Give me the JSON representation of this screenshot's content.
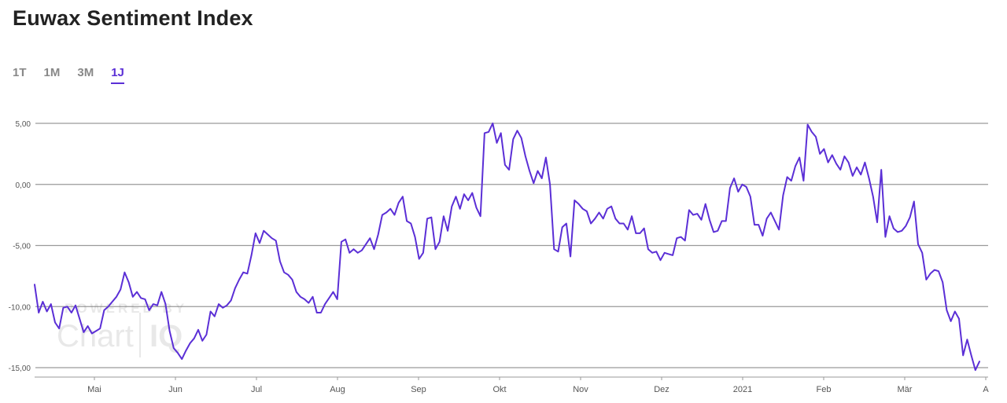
{
  "title": "Euwax Sentiment Index",
  "range_tabs": [
    {
      "label": "1T",
      "active": false
    },
    {
      "label": "1M",
      "active": false
    },
    {
      "label": "3M",
      "active": false
    },
    {
      "label": "1J",
      "active": true
    }
  ],
  "watermark": {
    "line1": "POWERED BY",
    "line2": "Chart",
    "line3": "IQ"
  },
  "colors": {
    "line": "#5b2fd6",
    "grid": "#9a9a9a",
    "accent": "#5b2fd6"
  },
  "chart_data": {
    "type": "line",
    "ylim": [
      -15,
      5
    ],
    "yticks": [
      5,
      0,
      -5,
      -10,
      -15
    ],
    "ytick_labels": [
      "5,00",
      "0,00",
      "-5,00",
      "-10,00",
      "-15,00"
    ],
    "xtick_labels": [
      "Mai",
      "Jun",
      "Jul",
      "Aug",
      "Sep",
      "Okt",
      "Nov",
      "Dez",
      "2021",
      "Feb",
      "Mär",
      "A"
    ],
    "grid": true,
    "series": [
      {
        "values": [
          -8.2,
          -10.5,
          -9.6,
          -10.4,
          -9.8,
          -11.3,
          -11.8,
          -10.1,
          -10.0,
          -10.5,
          -9.9,
          -11.0,
          -12.1,
          -11.6,
          -12.2,
          -12.0,
          -11.8,
          -10.3,
          -10.0,
          -9.6,
          -9.2,
          -8.6,
          -7.2,
          -8.0,
          -9.2,
          -8.8,
          -9.3,
          -9.4,
          -10.3,
          -9.8,
          -9.9,
          -8.8,
          -9.8,
          -12.0,
          -13.4,
          -13.8,
          -14.3,
          -13.6,
          -13.0,
          -12.6,
          -11.9,
          -12.8,
          -12.3,
          -10.4,
          -10.8,
          -9.8,
          -10.1,
          -9.9,
          -9.5,
          -8.5,
          -7.8,
          -7.2,
          -7.3,
          -5.8,
          -4.0,
          -4.8,
          -3.8,
          -4.1,
          -4.4,
          -4.6,
          -6.3,
          -7.2,
          -7.4,
          -7.8,
          -8.8,
          -9.2,
          -9.4,
          -9.7,
          -9.2,
          -10.5,
          -10.5,
          -9.8,
          -9.3,
          -8.8,
          -9.4,
          -4.7,
          -4.5,
          -5.6,
          -5.3,
          -5.6,
          -5.4,
          -4.9,
          -4.4,
          -5.3,
          -4.1,
          -2.5,
          -2.3,
          -2.0,
          -2.5,
          -1.5,
          -1.0,
          -3.0,
          -3.2,
          -4.3,
          -6.1,
          -5.6,
          -2.8,
          -2.7,
          -5.3,
          -4.7,
          -2.6,
          -3.8,
          -1.8,
          -1.0,
          -2.0,
          -0.8,
          -1.3,
          -0.7,
          -1.9,
          -2.6,
          4.2,
          4.3,
          5.0,
          3.4,
          4.2,
          1.6,
          1.2,
          3.7,
          4.4,
          3.8,
          2.3,
          1.1,
          0.1,
          1.1,
          0.5,
          2.2,
          0.0,
          -5.3,
          -5.5,
          -3.5,
          -3.2,
          -5.9,
          -1.3,
          -1.6,
          -2.0,
          -2.2,
          -3.2,
          -2.8,
          -2.3,
          -2.8,
          -2.0,
          -1.8,
          -2.8,
          -3.2,
          -3.2,
          -3.7,
          -2.6,
          -4.0,
          -4.0,
          -3.6,
          -5.3,
          -5.6,
          -5.5,
          -6.2,
          -5.6,
          -5.7,
          -5.8,
          -4.4,
          -4.3,
          -4.6,
          -2.1,
          -2.5,
          -2.4,
          -2.9,
          -1.6,
          -2.9,
          -3.9,
          -3.8,
          -3.0,
          -3.0,
          -0.3,
          0.5,
          -0.6,
          0.0,
          -0.2,
          -1.0,
          -3.3,
          -3.3,
          -4.2,
          -2.8,
          -2.3,
          -3.0,
          -3.7,
          -0.9,
          0.6,
          0.3,
          1.5,
          2.2,
          0.3,
          4.9,
          4.3,
          3.9,
          2.5,
          2.9,
          1.8,
          2.4,
          1.7,
          1.2,
          2.3,
          1.8,
          0.7,
          1.4,
          0.8,
          1.8,
          0.5,
          -1.0,
          -3.1,
          1.2,
          -4.3,
          -2.6,
          -3.6,
          -3.9,
          -3.8,
          -3.4,
          -2.7,
          -1.4,
          -4.9,
          -5.6,
          -7.8,
          -7.3,
          -7.0,
          -7.1,
          -8.0,
          -10.3,
          -11.2,
          -10.4,
          -11.0,
          -14.0,
          -12.7,
          -14.0,
          -15.2,
          -14.5
        ]
      }
    ]
  }
}
